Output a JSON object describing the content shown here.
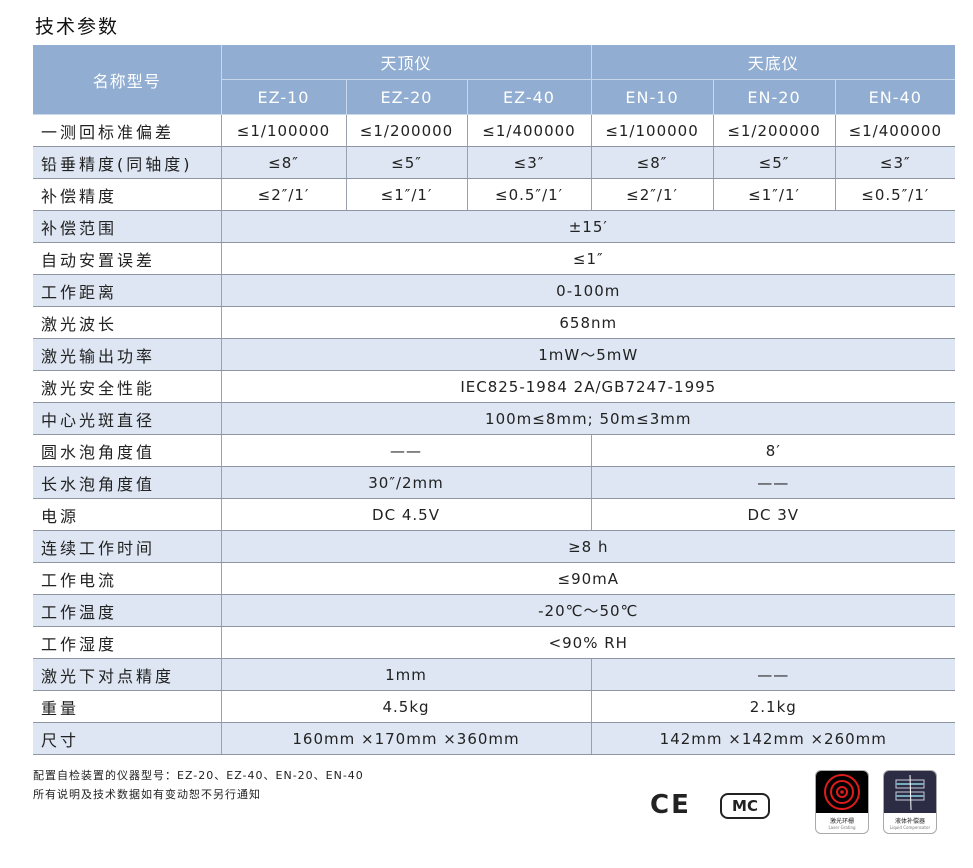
{
  "title": "技术参数",
  "header": {
    "name_label": "名称型号",
    "group1": "天顶仪",
    "group2": "天底仪",
    "models": [
      "EZ-10",
      "EZ-20",
      "EZ-40",
      "EN-10",
      "EN-20",
      "EN-40"
    ]
  },
  "rows": [
    {
      "label": "一测回标准偏差",
      "cells": [
        {
          "t": "≤1/100000",
          "s": 1
        },
        {
          "t": "≤1/200000",
          "s": 1
        },
        {
          "t": "≤1/400000",
          "s": 1
        },
        {
          "t": "≤1/100000",
          "s": 1
        },
        {
          "t": "≤1/200000",
          "s": 1
        },
        {
          "t": "≤1/400000",
          "s": 1
        }
      ]
    },
    {
      "label": " 铅垂精度(同轴度)",
      "cells": [
        {
          "t": "≤8″",
          "s": 1
        },
        {
          "t": "≤5″",
          "s": 1
        },
        {
          "t": "≤3″",
          "s": 1
        },
        {
          "t": "≤8″",
          "s": 1
        },
        {
          "t": "≤5″",
          "s": 1
        },
        {
          "t": "≤3″",
          "s": 1
        }
      ]
    },
    {
      "label": "补偿精度",
      "cells": [
        {
          "t": "≤2″/1′",
          "s": 1
        },
        {
          "t": "≤1″/1′",
          "s": 1
        },
        {
          "t": "≤0.5″/1′",
          "s": 1
        },
        {
          "t": "≤2″/1′",
          "s": 1
        },
        {
          "t": "≤1″/1′",
          "s": 1
        },
        {
          "t": "≤0.5″/1′",
          "s": 1
        }
      ]
    },
    {
      "label": "补偿范围",
      "cells": [
        {
          "t": "±15′",
          "s": 6
        }
      ]
    },
    {
      "label": "自动安置误差",
      "cells": [
        {
          "t": "≤1″",
          "s": 6
        }
      ]
    },
    {
      "label": "工作距离",
      "cells": [
        {
          "t": "0-100m",
          "s": 6
        }
      ]
    },
    {
      "label": "激光波长",
      "cells": [
        {
          "t": "658nm",
          "s": 6
        }
      ]
    },
    {
      "label": "激光输出功率",
      "cells": [
        {
          "t": "1mW～5mW",
          "s": 6
        }
      ]
    },
    {
      "label": "激光安全性能",
      "cells": [
        {
          "t": "IEC825-1984 2A/GB7247-1995",
          "s": 6
        }
      ]
    },
    {
      "label": "中心光斑直径",
      "cells": [
        {
          "t": "100m≤8mm; 50m≤3mm",
          "s": 6
        }
      ]
    },
    {
      "label": "圆水泡角度值",
      "cells": [
        {
          "t": "——",
          "s": 3
        },
        {
          "t": "8′",
          "s": 3
        }
      ]
    },
    {
      "label": "长水泡角度值",
      "cells": [
        {
          "t": "30″/2mm",
          "s": 3
        },
        {
          "t": "——",
          "s": 3
        }
      ]
    },
    {
      "label": "电源",
      "cells": [
        {
          "t": "DC 4.5V",
          "s": 3
        },
        {
          "t": "DC 3V",
          "s": 3
        }
      ]
    },
    {
      "label": "连续工作时间",
      "cells": [
        {
          "t": "≥8 h",
          "s": 6
        }
      ]
    },
    {
      "label": "工作电流",
      "cells": [
        {
          "t": "≤90mA",
          "s": 6
        }
      ]
    },
    {
      "label": "工作温度",
      "cells": [
        {
          "t": "-20℃～50℃",
          "s": 6
        }
      ]
    },
    {
      "label": "工作湿度",
      "cells": [
        {
          "t": "<90% RH",
          "s": 6
        }
      ]
    },
    {
      "label": "激光下对点精度",
      "cells": [
        {
          "t": "1mm",
          "s": 3
        },
        {
          "t": "——",
          "s": 3
        }
      ]
    },
    {
      "label": "重量",
      "cells": [
        {
          "t": "4.5kg",
          "s": 3
        },
        {
          "t": "2.1kg",
          "s": 3
        }
      ]
    },
    {
      "label": "尺寸",
      "cells": [
        {
          "t": "160mm ×170mm ×360mm",
          "s": 3
        },
        {
          "t": "142mm ×142mm ×260mm",
          "s": 3
        }
      ]
    }
  ],
  "notes": [
    "配置自检装置的仪器型号：EZ-20、EZ-40、EN-20、EN-40",
    "所有说明及技术数据如有变动恕不另行通知"
  ],
  "logos": {
    "ce": "CE",
    "cmc": "MC"
  },
  "badges": [
    {
      "cn": "激光环栅",
      "en": "Laser Grating"
    },
    {
      "cn": "液体补偿器",
      "en": "Liquid Compensator"
    }
  ]
}
